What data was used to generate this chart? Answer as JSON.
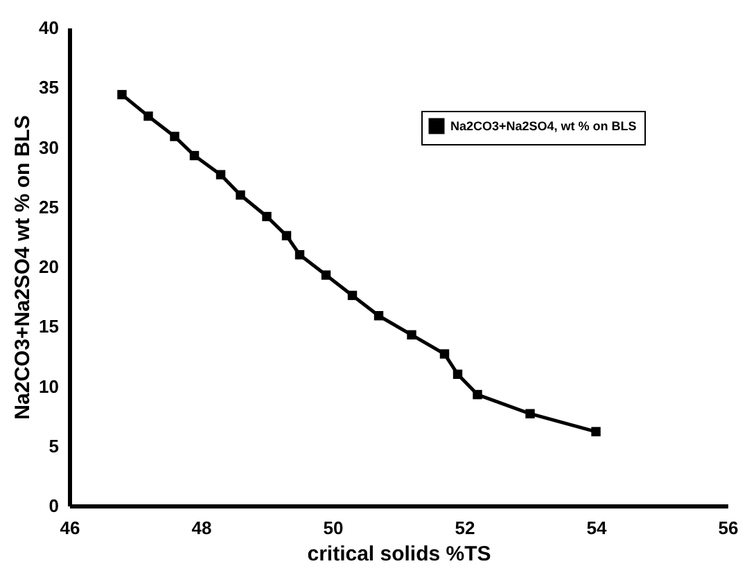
{
  "chart_data": {
    "type": "line",
    "xlabel": "critical solids %TS",
    "ylabel": "Na2CO3+Na2SO4 wt % on BLS",
    "xlim": [
      46,
      56
    ],
    "xticks": [
      46,
      48,
      50,
      52,
      54,
      56
    ],
    "ylim": [
      0,
      40
    ],
    "yticks": [
      0,
      5,
      10,
      15,
      20,
      25,
      30,
      35,
      40
    ],
    "grid": false,
    "legend": "top right",
    "marker": "square",
    "line_style": "solid",
    "x": [
      46.8,
      47.2,
      47.6,
      47.9,
      48.3,
      48.6,
      49.0,
      49.3,
      49.5,
      49.9,
      50.3,
      50.7,
      51.2,
      51.7,
      51.9,
      52.2,
      53.0,
      54.0
    ],
    "series": [
      {
        "name": "Na2CO3+Na2SO4, wt % on BLS",
        "color": "#000000",
        "values": [
          34.4,
          32.6,
          30.9,
          29.3,
          27.7,
          26.0,
          24.2,
          22.6,
          21.0,
          19.3,
          17.6,
          15.9,
          14.3,
          12.7,
          11.0,
          9.3,
          7.7,
          6.2
        ]
      }
    ]
  }
}
